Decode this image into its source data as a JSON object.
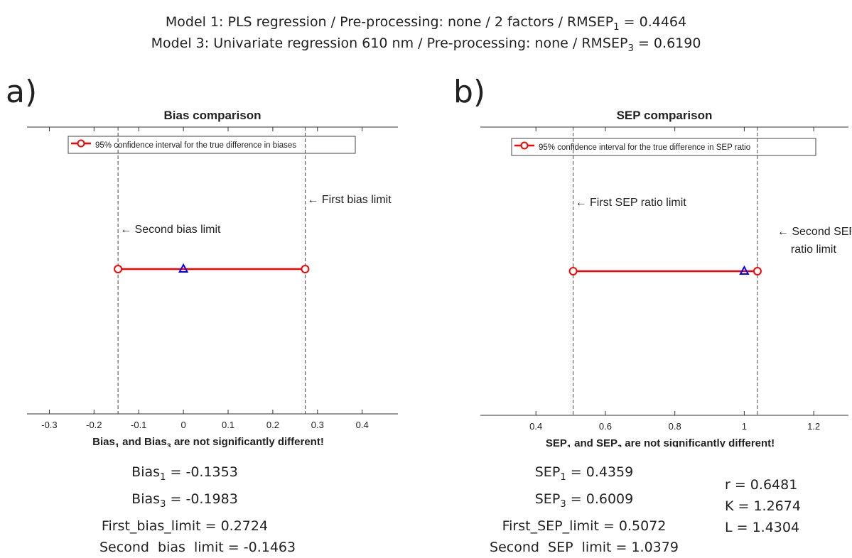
{
  "header": {
    "model1": {
      "pre": "Model 1: PLS regression / Pre-processing: none / 2 factors / RMSEP",
      "sub": "1",
      "post": " = 0.4464"
    },
    "model3": {
      "pre": "Model 3: Univariate regression 610 nm / Pre-processing: none / RMSEP",
      "sub": "3",
      "post": " = 0.6190"
    }
  },
  "chart_data": [
    {
      "panel_label": "a)",
      "type": "line",
      "title": "Bias comparison",
      "xlim": [
        -0.35,
        0.48
      ],
      "xticks": [
        "-0.3",
        "-0.2",
        "-0.1",
        "0",
        "0.1",
        "0.2",
        "0.3",
        "0.4"
      ],
      "xtick_values": [
        -0.3,
        -0.2,
        -0.1,
        0,
        0.1,
        0.2,
        0.3,
        0.4
      ],
      "interval": {
        "low": -0.1463,
        "high": 0.2724,
        "point": 0.0
      },
      "vlines": [
        {
          "x": -0.1463,
          "label": "← Second bias limit"
        },
        {
          "x": 0.2724,
          "label": "← First bias limit"
        }
      ],
      "legend": {
        "entry": "95% confidence interval for the true difference in biases",
        "position": "top"
      },
      "xlabel": {
        "a": "Bias",
        "a_sub": "1",
        "mid": " and Bias",
        "b_sub": "3",
        "end": " are not significantly different!"
      },
      "colors": {
        "interval": "#ff0000",
        "point": "#0000ff",
        "axis": "#333333"
      }
    },
    {
      "panel_label": "b)",
      "type": "line",
      "title": "SEP comparison",
      "xlim": [
        0.24,
        1.3
      ],
      "xticks": [
        "0.4",
        "0.6",
        "0.8",
        "1",
        "1.2"
      ],
      "xtick_values": [
        0.4,
        0.6,
        0.8,
        1.0,
        1.2
      ],
      "interval": {
        "low": 0.5072,
        "high": 1.0379,
        "point": 1.0
      },
      "vlines": [
        {
          "x": 0.5072,
          "label": "← First SEP ratio limit"
        },
        {
          "x": 1.0379,
          "label": "← Second SEP",
          "label2": "ratio limit"
        }
      ],
      "legend": {
        "entry": "95% confidence interval for the true difference in SEP ratio",
        "position": "top"
      },
      "xlabel": {
        "a": "SEP",
        "a_sub": "1",
        "mid": " and SEP",
        "b_sub": "3",
        "end": " are not significantly different!"
      },
      "colors": {
        "interval": "#ff0000",
        "point": "#0000ff",
        "axis": "#333333"
      }
    }
  ],
  "stats_a": {
    "l1": {
      "pre": "Bias",
      "sub": "1",
      "post": " = -0.1353"
    },
    "l2": {
      "pre": "Bias",
      "sub": "3",
      "post": " = -0.1983"
    },
    "l3": "First_bias_limit = 0.2724",
    "l4": "Second  bias  limit = -0.1463"
  },
  "stats_b": {
    "l1": {
      "pre": "SEP",
      "sub": "1",
      "post": " = 0.4359"
    },
    "l2": {
      "pre": "SEP",
      "sub": "3",
      "post": " = 0.6009"
    },
    "l3": "First_SEP_limit = 0.5072",
    "l4": "Second  SEP  limit = 1.0379"
  },
  "stats_c": {
    "r": "r = 0.6481",
    "K": "K = 1.2674",
    "L": "L = 1.4304"
  }
}
